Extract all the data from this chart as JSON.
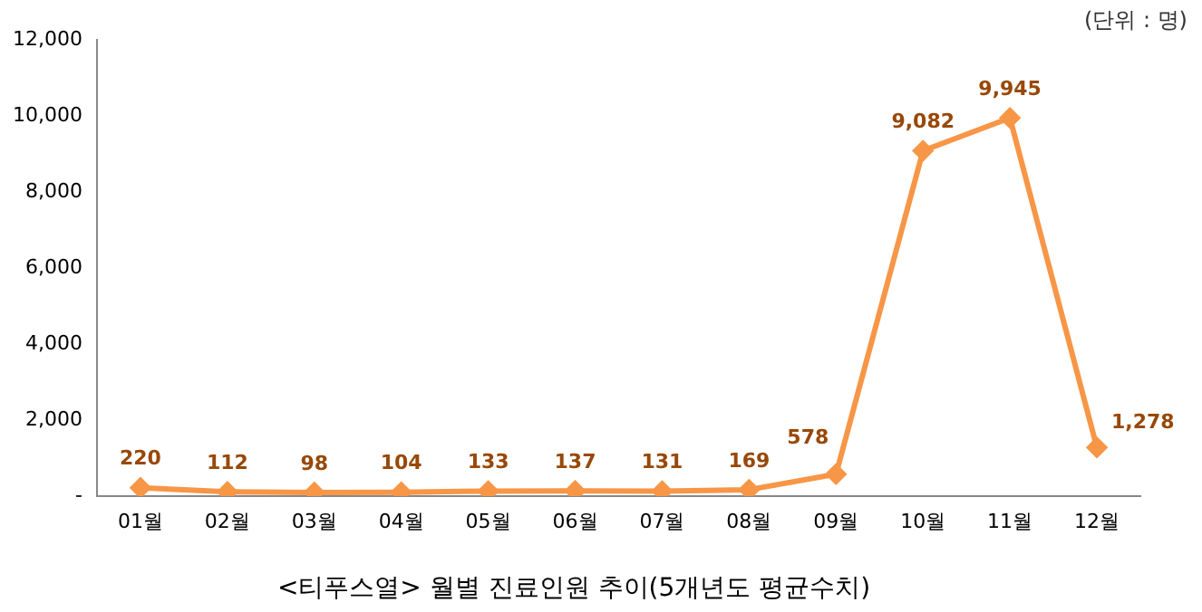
{
  "chart_data": {
    "type": "line",
    "title": "<티푸스열> 월별 진료인원 추이(5개년도 평균수치)",
    "annotations": [
      "(단위 : 명)"
    ],
    "categories": [
      "01월",
      "02월",
      "03월",
      "04월",
      "05월",
      "06월",
      "07월",
      "08월",
      "09월",
      "10월",
      "11월",
      "12월"
    ],
    "series": [
      {
        "color": "#f79646",
        "values": [
          220,
          112,
          98,
          104,
          133,
          137,
          131,
          169,
          578,
          9082,
          9945,
          1278
        ],
        "value_labels": [
          "220",
          "112",
          "98",
          "104",
          "133",
          "137",
          "131",
          "169",
          "578",
          "9,082",
          "9,945",
          "1,278"
        ]
      }
    ],
    "ylim": [
      0,
      12000
    ],
    "yticks": [
      {
        "value": 0,
        "label": "-"
      },
      {
        "value": 2000,
        "label": "2,000"
      },
      {
        "value": 4000,
        "label": "4,000"
      },
      {
        "value": 6000,
        "label": "6,000"
      },
      {
        "value": 8000,
        "label": "8,000"
      },
      {
        "value": 10000,
        "label": "10,000"
      },
      {
        "value": 12000,
        "label": "12,000"
      }
    ],
    "grid": false,
    "legend": false,
    "marker": "diamond",
    "line_style": "solid"
  }
}
